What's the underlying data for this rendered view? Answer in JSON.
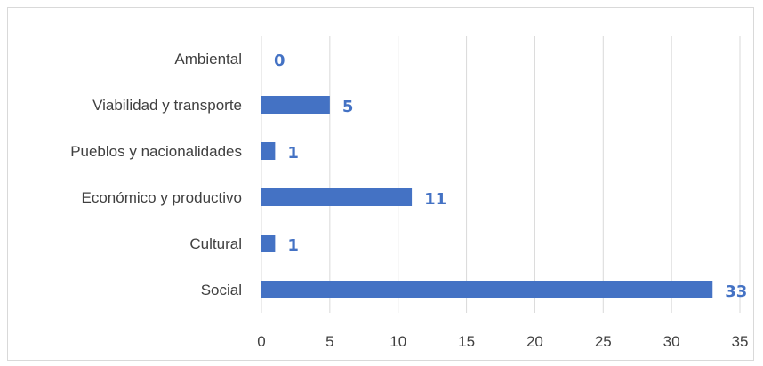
{
  "chart_data": {
    "type": "bar",
    "orientation": "horizontal",
    "categories": [
      "Ambiental",
      "Viabilidad y transporte",
      "Pueblos y nacionalidades",
      "Económico y productivo",
      "Cultural",
      "Social"
    ],
    "values": [
      0,
      5,
      1,
      11,
      1,
      33
    ],
    "xlim": [
      0,
      35
    ],
    "xticks": [
      0,
      5,
      10,
      15,
      20,
      25,
      30,
      35
    ],
    "grid": "vertical",
    "data_labels": true,
    "legend": "none",
    "colors": {
      "bar": "#4472c4",
      "data_label": "#4472c4",
      "grid": "#d9d9d9"
    }
  }
}
